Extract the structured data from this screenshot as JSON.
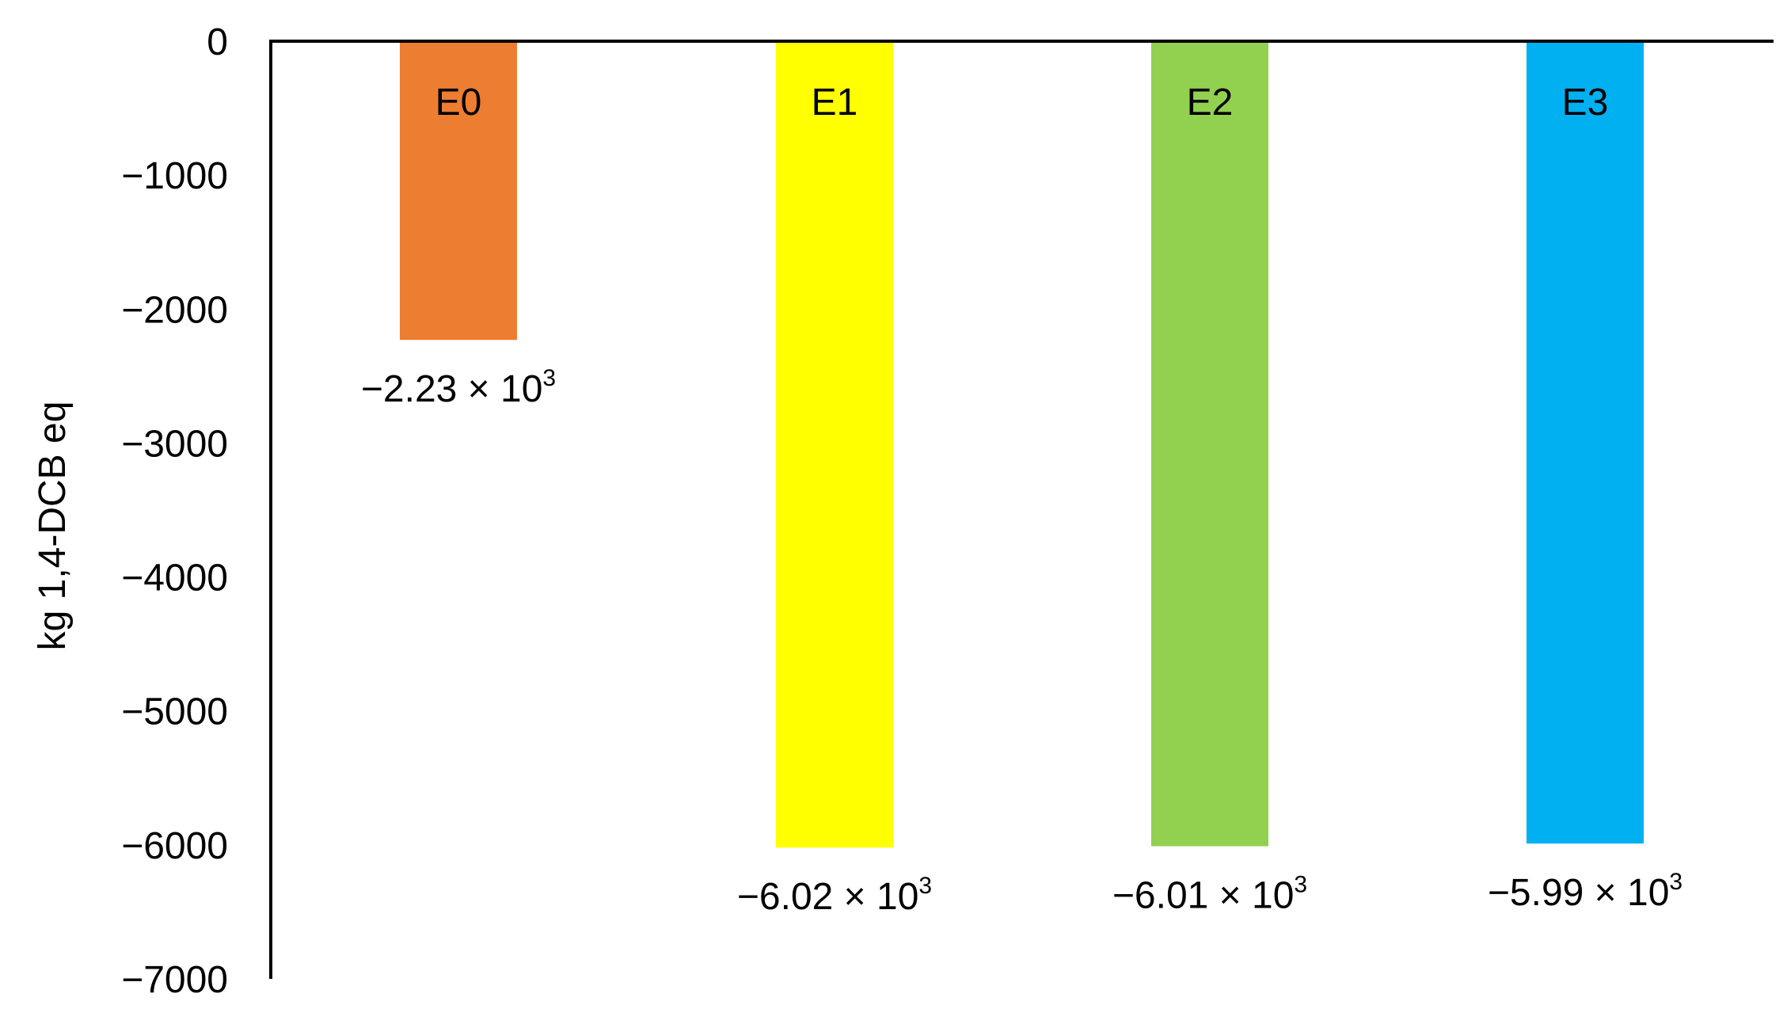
{
  "chart_data": {
    "type": "bar",
    "categories": [
      "E0",
      "E1",
      "E2",
      "E3"
    ],
    "values": [
      -2230,
      -6020,
      -6010,
      -5990
    ],
    "value_labels": [
      {
        "mantissa": "−2.23 × 10",
        "exponent": "3"
      },
      {
        "mantissa": "−6.02 × 10",
        "exponent": "3"
      },
      {
        "mantissa": "−6.01 × 10",
        "exponent": "3"
      },
      {
        "mantissa": "−5.99 × 10",
        "exponent": "3"
      }
    ],
    "colors": [
      "#ED7D31",
      "#FFFF00",
      "#92D050",
      "#00B0F0"
    ],
    "ylabel": "kg 1,4-DCB eq",
    "ylim": [
      -7000,
      0
    ],
    "yticks": [
      0,
      -1000,
      -2000,
      -3000,
      -4000,
      -5000,
      -6000,
      -7000
    ],
    "ytick_labels": [
      "0",
      "−1000",
      "−2000",
      "−3000",
      "−4000",
      "−5000",
      "−6000",
      "−7000"
    ],
    "grid": false,
    "legend": "none"
  }
}
